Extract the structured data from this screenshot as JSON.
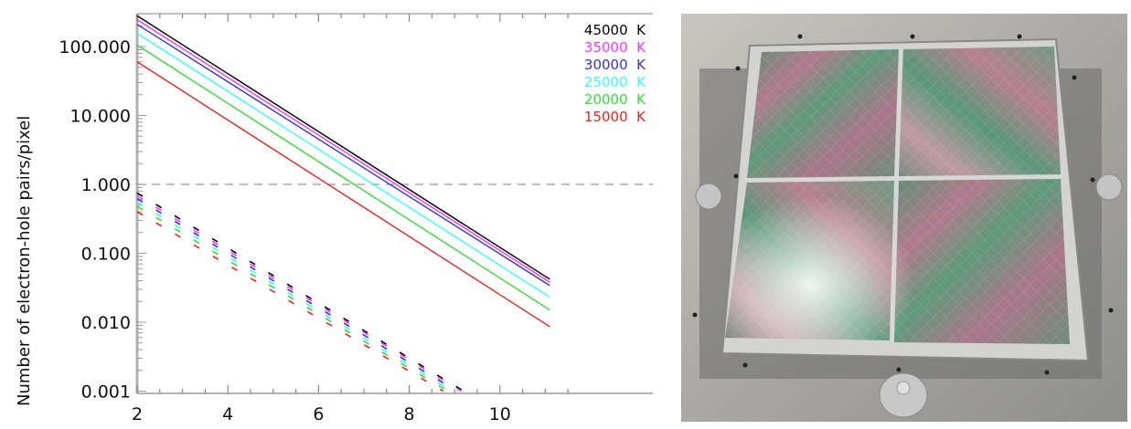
{
  "chart_data": {
    "type": "line",
    "title": "",
    "xlabel": "",
    "ylabel": "Number of electron-hole pairs/pixel",
    "yscale": "log",
    "xlim": [
      2,
      11.6
    ],
    "ylim": [
      0.001,
      300
    ],
    "x_ticks": [
      "2",
      "4",
      "6",
      "8",
      "10"
    ],
    "y_ticks": [
      "100.000",
      "10.000",
      "1.000",
      "0.100",
      "0.010",
      "0.001"
    ],
    "grid": false,
    "legend_position": "upper right",
    "reference_line": {
      "y": 1.0,
      "style": "dashed",
      "color": "#999999"
    },
    "series": [
      {
        "name": "45000 K",
        "color": "#000000",
        "style": "solid",
        "x": [
          2,
          11.1
        ],
        "values": [
          280,
          0.042
        ]
      },
      {
        "name": "35000 K",
        "color": "#ff33ff",
        "style": "solid",
        "x": [
          2,
          11.1
        ],
        "values": [
          245,
          0.038
        ]
      },
      {
        "name": "30000 K",
        "color": "#3333dd",
        "style": "solid",
        "x": [
          2,
          11.1
        ],
        "values": [
          210,
          0.034
        ]
      },
      {
        "name": "25000 K",
        "color": "#33ffff",
        "style": "solid",
        "x": [
          2,
          11.1
        ],
        "values": [
          155,
          0.023
        ]
      },
      {
        "name": "20000 K",
        "color": "#33dd33",
        "style": "solid",
        "x": [
          2,
          11.1
        ],
        "values": [
          105,
          0.015
        ]
      },
      {
        "name": "15000 K",
        "color": "#ee2222",
        "style": "solid",
        "x": [
          2,
          11.1
        ],
        "values": [
          60,
          0.0086
        ]
      },
      {
        "name": "45000 K (dashed)",
        "color": "#000000",
        "style": "dashed",
        "x": [
          2,
          9.2
        ],
        "values": [
          0.75,
          0.001
        ]
      },
      {
        "name": "35000 K (dashed)",
        "color": "#ff33ff",
        "style": "dashed",
        "x": [
          2,
          9.15
        ],
        "values": [
          0.68,
          0.001
        ]
      },
      {
        "name": "30000 K (dashed)",
        "color": "#3333dd",
        "style": "dashed",
        "x": [
          2,
          9.05
        ],
        "values": [
          0.62,
          0.001
        ]
      },
      {
        "name": "25000 K (dashed)",
        "color": "#33ffff",
        "style": "dashed",
        "x": [
          2,
          8.95
        ],
        "values": [
          0.55,
          0.001
        ]
      },
      {
        "name": "20000 K (dashed)",
        "color": "#33dd33",
        "style": "dashed",
        "x": [
          2,
          8.85
        ],
        "values": [
          0.48,
          0.001
        ]
      },
      {
        "name": "15000 K (dashed)",
        "color": "#ee2222",
        "style": "dashed",
        "x": [
          2,
          8.75
        ],
        "values": [
          0.4,
          0.001
        ]
      }
    ]
  },
  "legend": [
    {
      "label": "45000 K",
      "color": "#000000"
    },
    {
      "label": "35000 K",
      "color": "#ff33ff"
    },
    {
      "label": "30000 K",
      "color": "#3333dd"
    },
    {
      "label": "25000 K",
      "color": "#33ffff"
    },
    {
      "label": "20000 K",
      "color": "#33dd33"
    },
    {
      "label": "15000 K",
      "color": "#ee2222"
    }
  ],
  "axes": {
    "ylabel": "Number of electron-hole pairs/pixel",
    "x_ticks": [
      "2",
      "4",
      "6",
      "8",
      "10"
    ],
    "y_ticks": [
      "100.000",
      "10.000",
      "1.000",
      "0.100",
      "0.010",
      "0.001"
    ]
  },
  "photo": {
    "description": "Photograph of a 2x2 mosaic detector / wafer assembly in a metal frame with iridescent pink-green surface"
  }
}
